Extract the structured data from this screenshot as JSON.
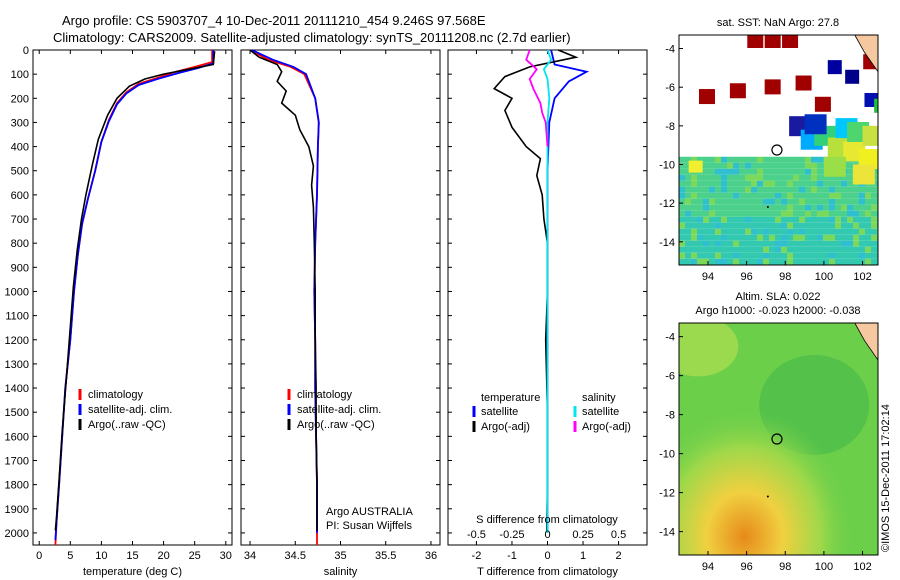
{
  "header": {
    "line1": "Argo profile: CS 5903707_4 10-Dec-2011 20111210_454 9.246S 97.568E",
    "line2": "Climatology: CARS2009. Satellite-adjusted climatology: synTS_20111208.nc (2.7d earlier)"
  },
  "stamp": "©IMOS 15-Dec-2011 17:02:14",
  "colors": {
    "climatology": "#ff0000",
    "satellite": "#0000ff",
    "argo": "#000000",
    "sat_salinity": "#00e5ee",
    "argo_adj": "#ff00ff"
  },
  "chart_data": [
    {
      "type": "line",
      "panel": "temperature",
      "xlabel": "temperature (deg C)",
      "ylabel": "",
      "xlim": [
        -1,
        31
      ],
      "ylim": [
        2050,
        0
      ],
      "xticks": [
        0,
        5,
        10,
        15,
        20,
        25,
        30
      ],
      "yticks": [
        0,
        100,
        200,
        300,
        400,
        500,
        600,
        700,
        800,
        900,
        1000,
        1100,
        1200,
        1300,
        1400,
        1500,
        1600,
        1700,
        1800,
        1900,
        2000
      ],
      "legend": [
        "climatology",
        "satellite-adj. clim.",
        "Argo(..raw -QC)"
      ],
      "series": [
        {
          "name": "climatology",
          "color": "#ff0000",
          "points": [
            [
              27.8,
              0
            ],
            [
              27.8,
              50
            ],
            [
              25,
              70
            ],
            [
              22,
              90
            ],
            [
              19,
              115
            ],
            [
              16,
              140
            ],
            [
              14,
              175
            ],
            [
              12.5,
              220
            ],
            [
              11.2,
              290
            ],
            [
              10,
              380
            ],
            [
              9,
              500
            ],
            [
              7.8,
              620
            ],
            [
              6.9,
              720
            ],
            [
              6.2,
              850
            ],
            [
              5.6,
              1000
            ],
            [
              5,
              1200
            ],
            [
              4.2,
              1400
            ],
            [
              3.7,
              1600
            ],
            [
              3.2,
              1800
            ],
            [
              2.8,
              1950
            ],
            [
              2.6,
              2050
            ]
          ]
        },
        {
          "name": "satellite-adj. clim.",
          "color": "#0000ff",
          "points": [
            [
              28.0,
              0
            ],
            [
              28.0,
              55
            ],
            [
              25.5,
              75
            ],
            [
              22.5,
              95
            ],
            [
              19,
              120
            ],
            [
              16,
              145
            ],
            [
              14,
              180
            ],
            [
              12.5,
              225
            ],
            [
              11.2,
              295
            ],
            [
              10,
              380
            ],
            [
              9,
              500
            ],
            [
              7.8,
              620
            ],
            [
              6.9,
              720
            ],
            [
              6.2,
              850
            ],
            [
              5.6,
              1000
            ],
            [
              5,
              1200
            ],
            [
              4.2,
              1400
            ],
            [
              3.7,
              1600
            ],
            [
              3.2,
              1800
            ],
            [
              2.8,
              1950
            ],
            [
              2.6,
              2030
            ]
          ]
        },
        {
          "name": "Argo(..raw -QC)",
          "color": "#000000",
          "points": [
            [
              28.2,
              5
            ],
            [
              28.0,
              60
            ],
            [
              24,
              80
            ],
            [
              20,
              100
            ],
            [
              17,
              120
            ],
            [
              14.5,
              150
            ],
            [
              12.5,
              200
            ],
            [
              11,
              270
            ],
            [
              9.5,
              370
            ],
            [
              8.5,
              480
            ],
            [
              7.5,
              600
            ],
            [
              6.8,
              700
            ],
            [
              6.1,
              830
            ],
            [
              5.5,
              980
            ],
            [
              4.9,
              1180
            ],
            [
              4.3,
              1380
            ],
            [
              3.7,
              1580
            ],
            [
              3.2,
              1780
            ],
            [
              2.8,
              1930
            ],
            [
              2.6,
              1990
            ]
          ]
        }
      ]
    },
    {
      "type": "line",
      "panel": "salinity",
      "xlabel": "salinity",
      "xlim": [
        33.9,
        36.1
      ],
      "ylim": [
        2050,
        0
      ],
      "xticks": [
        34,
        34.5,
        35,
        35.5,
        36
      ],
      "legend": [
        "climatology",
        "satellite-adj. clim.",
        "Argo(..raw -QC)"
      ],
      "annotation": [
        "Argo AUSTRALIA",
        "PI: Susan Wijffels"
      ],
      "series": [
        {
          "name": "climatology",
          "color": "#ff0000",
          "points": [
            [
              34.0,
              0
            ],
            [
              34.2,
              40
            ],
            [
              34.45,
              70
            ],
            [
              34.6,
              100
            ],
            [
              34.72,
              200
            ],
            [
              34.76,
              300
            ],
            [
              34.75,
              400
            ],
            [
              34.74,
              600
            ],
            [
              34.72,
              800
            ],
            [
              34.71,
              1000
            ],
            [
              34.72,
              1200
            ],
            [
              34.72,
              1400
            ],
            [
              34.73,
              1600
            ],
            [
              34.74,
              1800
            ],
            [
              34.74,
              2050
            ]
          ]
        },
        {
          "name": "satellite-adj. clim.",
          "color": "#0000ff",
          "points": [
            [
              34.02,
              0
            ],
            [
              34.25,
              40
            ],
            [
              34.48,
              70
            ],
            [
              34.62,
              100
            ],
            [
              34.72,
              200
            ],
            [
              34.76,
              300
            ],
            [
              34.75,
              400
            ],
            [
              34.74,
              600
            ],
            [
              34.72,
              800
            ],
            [
              34.71,
              1000
            ],
            [
              34.72,
              1200
            ],
            [
              34.72,
              1400
            ],
            [
              34.73,
              1600
            ],
            [
              34.74,
              1800
            ],
            [
              34.74,
              2000
            ]
          ]
        },
        {
          "name": "Argo(..raw -QC)",
          "color": "#000000",
          "points": [
            [
              34.0,
              0
            ],
            [
              34.1,
              30
            ],
            [
              34.3,
              60
            ],
            [
              34.35,
              90
            ],
            [
              34.3,
              130
            ],
            [
              34.4,
              170
            ],
            [
              34.35,
              220
            ],
            [
              34.5,
              270
            ],
            [
              34.55,
              330
            ],
            [
              34.65,
              400
            ],
            [
              34.7,
              480
            ],
            [
              34.68,
              560
            ],
            [
              34.7,
              650
            ],
            [
              34.71,
              800
            ],
            [
              34.72,
              1000
            ],
            [
              34.72,
              1200
            ],
            [
              34.73,
              1400
            ],
            [
              34.73,
              1600
            ],
            [
              34.74,
              1800
            ],
            [
              34.74,
              1990
            ]
          ]
        }
      ]
    },
    {
      "type": "line",
      "panel": "difference",
      "xlabel": "T difference from climatology",
      "xlabel_top": "S difference from climatology",
      "xlim": [
        -2.8,
        2.8
      ],
      "ylim": [
        2050,
        0
      ],
      "xticks": [
        -2,
        -1,
        0,
        1,
        2
      ],
      "xticks_s": [
        -0.5,
        -0.25,
        0,
        0.25,
        0.5
      ],
      "legend_headers": [
        "temperature",
        "salinity"
      ],
      "legend": [
        "satellite",
        "Argo(-adj)",
        "satellite",
        "Argo(-adj)"
      ],
      "series": [
        {
          "name": "satellite",
          "color": "#0000ff",
          "points": [
            [
              0.1,
              0
            ],
            [
              0.2,
              60
            ],
            [
              1.1,
              90
            ],
            [
              0.6,
              130
            ],
            [
              0.2,
              200
            ],
            [
              0.05,
              300
            ],
            [
              0,
              500
            ],
            [
              0,
              2000
            ]
          ]
        },
        {
          "name": "Argo(-adj)",
          "color": "#000000",
          "points": [
            [
              0.3,
              0
            ],
            [
              0.8,
              30
            ],
            [
              -0.5,
              70
            ],
            [
              -1.2,
              110
            ],
            [
              -1.5,
              160
            ],
            [
              -1.0,
              200
            ],
            [
              -1.2,
              250
            ],
            [
              -1.0,
              320
            ],
            [
              -0.6,
              400
            ],
            [
              -0.2,
              450
            ],
            [
              -0.3,
              520
            ],
            [
              -0.15,
              600
            ],
            [
              -0.1,
              700
            ],
            [
              0,
              800
            ],
            [
              0,
              1000
            ],
            [
              -0.05,
              1200
            ],
            [
              0,
              1500
            ],
            [
              0,
              1800
            ],
            [
              -0.02,
              1990
            ]
          ]
        },
        {
          "name": "satellite",
          "color": "#00e5ee",
          "points": [
            [
              0,
              0
            ],
            [
              0.1,
              40
            ],
            [
              -0.1,
              80
            ],
            [
              0,
              120
            ],
            [
              0.05,
              200
            ],
            [
              0,
              300
            ],
            [
              0,
              2000
            ]
          ]
        },
        {
          "name": "Argo(-adj)",
          "color": "#ff00ff",
          "points": [
            [
              -0.5,
              0
            ],
            [
              -0.6,
              40
            ],
            [
              -0.3,
              80
            ],
            [
              -0.5,
              120
            ],
            [
              -0.4,
              160
            ],
            [
              -0.2,
              220
            ],
            [
              -0.15,
              260
            ],
            [
              -0.05,
              300
            ],
            [
              0,
              400
            ]
          ]
        }
      ]
    },
    {
      "type": "heatmap",
      "panel": "sst_map",
      "title": "sat. SST: NaN Argo: 27.8",
      "xlim": [
        92.5,
        102.8
      ],
      "ylim": [
        -15.2,
        -3.3
      ],
      "xticks": [
        94,
        96,
        98,
        100,
        102
      ],
      "yticks": [
        -4,
        -6,
        -8,
        -10,
        -12,
        -14
      ],
      "argo_position": [
        97.57,
        -9.25
      ]
    },
    {
      "type": "heatmap",
      "panel": "sla_map",
      "title": "Altim. SLA: 0.022",
      "subtitle": "Argo h1000: -0.023 h2000: -0.038",
      "xlim": [
        92.5,
        102.8
      ],
      "ylim": [
        -15.2,
        -3.3
      ],
      "xticks": [
        94,
        96,
        98,
        100,
        102
      ],
      "yticks": [
        -4,
        -6,
        -8,
        -10,
        -12,
        -14
      ],
      "argo_position": [
        97.57,
        -9.25
      ]
    }
  ]
}
